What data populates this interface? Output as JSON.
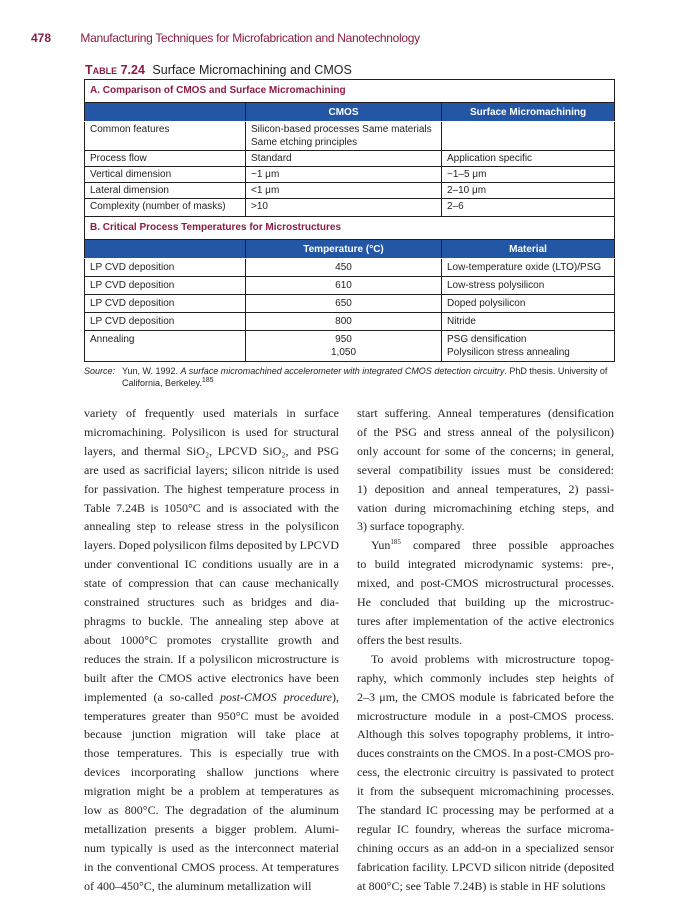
{
  "header": {
    "page_number": "478",
    "running_title": "Manufacturing Techniques for Microfabrication and Nanotechnology"
  },
  "table": {
    "label": "Table 7.24",
    "title": "Surface Micromachining and CMOS",
    "section_a": {
      "title": "A. Comparison of CMOS and Surface Micromachining",
      "columns": [
        "",
        "CMOS",
        "Surface Micromachining"
      ],
      "rows": [
        [
          "Common features",
          "Silicon-based processes Same materials",
          "",
          ""
        ],
        [
          "Process flow",
          "Standard",
          "Application specific"
        ],
        [
          "Vertical dimension",
          "~1 μm",
          "~1–5 μm"
        ],
        [
          "Lateral dimension",
          "<1 μm",
          "2–10 μm"
        ],
        [
          "Complexity (number of masks)",
          ">10",
          "2–6"
        ]
      ],
      "common_features_line2": "Same etching principles"
    },
    "section_b": {
      "title": "B. Critical Process Temperatures for Microstructures",
      "columns": [
        "",
        "Temperature (°C)",
        "Material"
      ],
      "rows": [
        [
          "LP CVD deposition",
          "450",
          "Low-temperature oxide (LTO)/PSG"
        ],
        [
          "LP CVD deposition",
          "610",
          "Low-stress polysilicon"
        ],
        [
          "LP CVD deposition",
          "650",
          "Doped polysilicon"
        ],
        [
          "LP CVD deposition",
          "800",
          "Nitride"
        ],
        [
          "Annealing",
          "950",
          "PSG densification",
          "1,050",
          "Polysilicon stress annealing"
        ]
      ]
    },
    "source": {
      "label": "Source:",
      "pre": "Yun, W. 1992. ",
      "title": "A surface micromachined accelerometer with integrated CMOS detection circuitry",
      "post": ". PhD thesis. University of California, Berkeley.",
      "ref": "185"
    }
  },
  "body": {
    "left": [
      "variety of frequently used materials in surface",
      "micromachining. Polysilicon is used for structural",
      "layers, and thermal SiO₂, LPCVD SiO₂, and PSG",
      "are used as sacrificial layers; silicon nitride is used",
      "for passivation. The highest temperature process in",
      "Table 7.24B is 1050°C and is associated with the",
      "annealing step to release stress in the polysilicon",
      "layers. Doped polysilicon films deposited by LPCVD",
      "under conventional IC conditions usually are in a",
      "state of compression that can cause mechanically",
      "constrained structures such as bridges and dia-",
      "phragms to buckle. The annealing step above at",
      "about 1000°C promotes crystallite growth and",
      "reduces the strain. If a polysilicon microstructure is",
      "built after the CMOS active electronics have been",
      "",
      "temperatures greater than 950°C must be avoided",
      "because junction migration will take place at",
      "those temperatures. This is especially true with",
      "devices incorporating shallow junctions where",
      "migration might be a problem at temperatures as",
      "low as 800°C. The degradation of the aluminum",
      "metallization presents a bigger problem. Alumi-",
      "num typically is used as the interconnect material",
      "in the conventional CMOS process. At temperatures",
      "of 400–450°C, the aluminum metallization will"
    ],
    "left_line16": {
      "a": "implemented (a so-called ",
      "b": "post-CMOS procedure",
      "c": "),"
    },
    "right": [
      "start suffering. Anneal temperatures (densification",
      "of the PSG and stress anneal of the polysilicon)",
      "only account for some of the concerns; in general,",
      "several compatibility issues must be considered:",
      "1) deposition and anneal temperatures, 2) passi-",
      "vation during micromachining etching steps, and",
      "3) surface topography.",
      "",
      "to build integrated microdynamic systems: pre-,",
      "mixed, and post-CMOS microstructural processes.",
      "He concluded that building up the microstruc-",
      "tures after implementation of the active electronics",
      "offers the best results.",
      "To avoid problems with microstructure topog-",
      "raphy, which commonly includes step heights of",
      "2–3 μm, the CMOS module is fabricated before the",
      "microstructure module in a post-CMOS process.",
      "Although this solves topography problems, it intro-",
      "duces constraints on the CMOS. In a post-CMOS pro-",
      "cess, the electronic circuitry is passivated to protect",
      "it from the subsequent micromachining processes.",
      "The standard IC processing may be performed at a",
      "regular IC foundry, whereas the surface microma-",
      "chining occurs as an add-on in a specialized sensor",
      "fabrication facility. LPCVD silicon nitride (deposited",
      "at 800°C; see Table 7.24B) is stable in HF solutions"
    ],
    "right_line8": {
      "a": "Yun",
      "ref": "185",
      "b": " compared three possible approaches"
    }
  },
  "colors": {
    "accent": "#8b1d41",
    "table_header": "#2456a6"
  }
}
